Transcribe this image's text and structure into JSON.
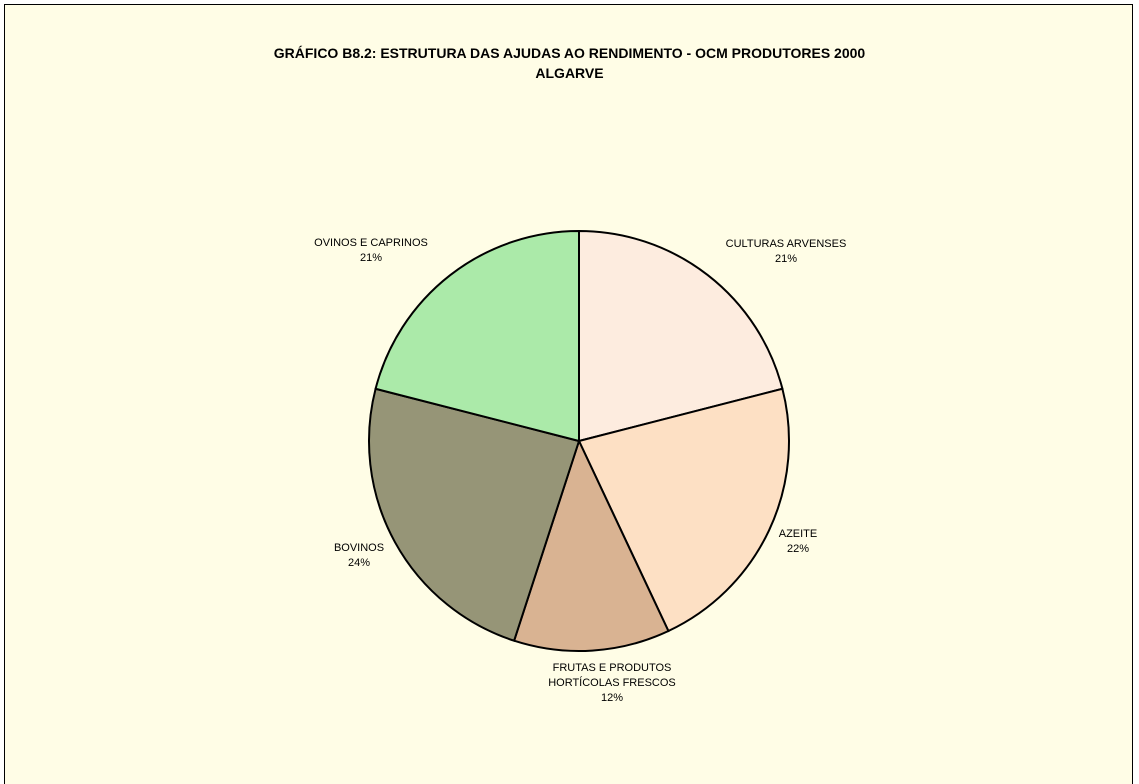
{
  "chart_data": {
    "type": "pie",
    "title_line1": "GRÁFICO B8.2: ESTRUTURA DAS AJUDAS AO RENDIMENTO - OCM PRODUTORES 2000",
    "title_line2": "ALGARVE",
    "slices": [
      {
        "label": [
          "CULTURAS ARVENSES"
        ],
        "percent_label": "21%",
        "value": 21,
        "color": "#fdecdf"
      },
      {
        "label": [
          "AZEITE"
        ],
        "percent_label": "22%",
        "value": 22,
        "color": "#fde0c4"
      },
      {
        "label": [
          "FRUTAS E PRODUTOS",
          "HORTÍCOLAS FRESCOS"
        ],
        "percent_label": "12%",
        "value": 12,
        "color": "#d9b392"
      },
      {
        "label": [
          "BOVINOS"
        ],
        "percent_label": "24%",
        "value": 24,
        "color": "#969577"
      },
      {
        "label": [
          "OVINOS E CAPRINOS"
        ],
        "percent_label": "21%",
        "value": 21,
        "color": "#abeaa9"
      }
    ],
    "start_angle": "12 o'clock",
    "direction": "clockwise",
    "legend": "none"
  }
}
